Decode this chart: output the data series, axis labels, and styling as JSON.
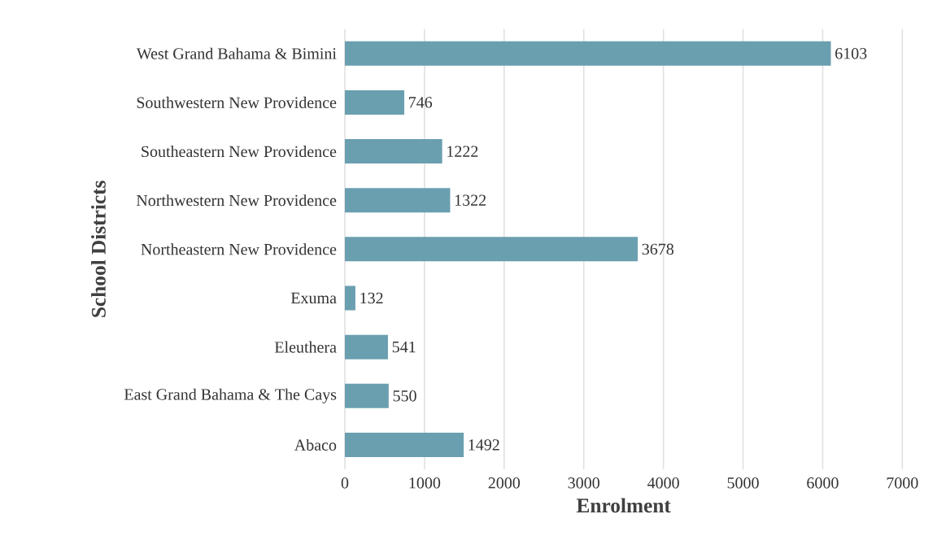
{
  "chart_data": {
    "type": "bar",
    "orientation": "horizontal",
    "xlabel": "Enrolment",
    "ylabel": "School Districts",
    "categories": [
      "West Grand Bahama & Bimini",
      "Southwestern New Providence",
      "Southeastern New Providence",
      "Northwestern New Providence",
      "Northeastern New Providence",
      "Exuma",
      "Eleuthera",
      "East Grand Bahama & The Cays",
      "Abaco"
    ],
    "values": [
      6103,
      746,
      1222,
      1322,
      3678,
      132,
      541,
      550,
      1492
    ],
    "color": "#6a9fb0",
    "data_labels": true,
    "grid": "x",
    "xlim": [
      0,
      7000
    ],
    "xticks": [
      0,
      1000,
      2000,
      3000,
      4000,
      5000,
      6000,
      7000
    ]
  }
}
